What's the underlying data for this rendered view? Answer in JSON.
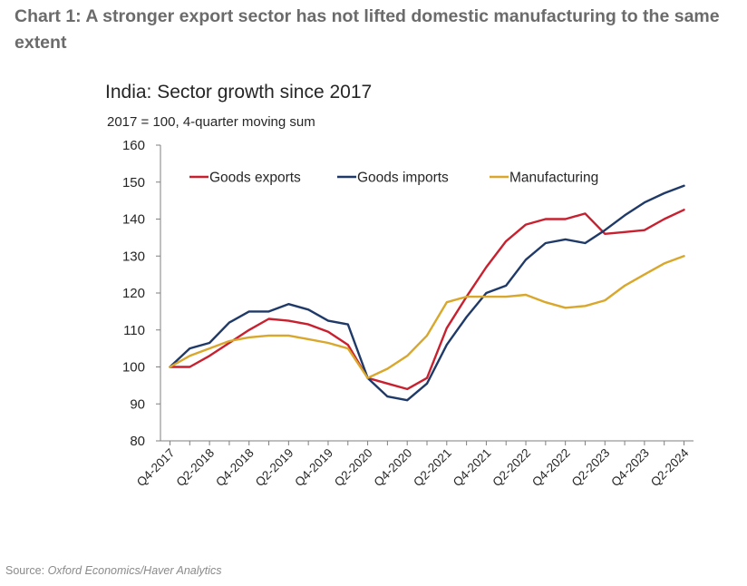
{
  "page": {
    "title": "Chart 1: A stronger export sector has not lifted domestic manufacturing to the same extent",
    "source_label": "Source:",
    "source_name": "Oxford Economics/Haver Analytics"
  },
  "colors": {
    "goods_exports": "#c8202f",
    "goods_imports": "#1f3a68",
    "manufacturing": "#d8a72b",
    "axis": "#7f7f7f",
    "text": "#262626"
  },
  "chart_data": {
    "type": "line",
    "title": "India: Sector growth since 2017",
    "subtitle": "2017 = 100, 4-quarter moving sum",
    "xlabel": "",
    "ylabel": "",
    "ylim": [
      80,
      160
    ],
    "yticks": [
      80,
      90,
      100,
      110,
      120,
      130,
      140,
      150,
      160
    ],
    "grid": false,
    "legend_position": "top",
    "x_tick_labels": [
      "Q4-2017",
      "Q2-2018",
      "Q4-2018",
      "Q2-2019",
      "Q4-2019",
      "Q2-2020",
      "Q4-2020",
      "Q2-2021",
      "Q4-2021",
      "Q2-2022",
      "Q4-2022",
      "Q2-2023",
      "Q4-2023",
      "Q2-2024"
    ],
    "x": [
      "Q4-2017",
      "Q1-2018",
      "Q2-2018",
      "Q3-2018",
      "Q4-2018",
      "Q1-2019",
      "Q2-2019",
      "Q3-2019",
      "Q4-2019",
      "Q1-2020",
      "Q2-2020",
      "Q3-2020",
      "Q4-2020",
      "Q1-2021",
      "Q2-2021",
      "Q3-2021",
      "Q4-2021",
      "Q1-2022",
      "Q2-2022",
      "Q3-2022",
      "Q4-2022",
      "Q1-2023",
      "Q2-2023",
      "Q3-2023",
      "Q4-2023",
      "Q1-2024",
      "Q2-2024"
    ],
    "series": [
      {
        "name": "Goods exports",
        "color_key": "goods_exports",
        "values": [
          100,
          100,
          103,
          106.5,
          110,
          113,
          112.5,
          111.5,
          109.5,
          106,
          97,
          95.5,
          94,
          97,
          110.5,
          119,
          127,
          134,
          138.5,
          140,
          140,
          141.5,
          136,
          136.5,
          137,
          140,
          142.5
        ]
      },
      {
        "name": "Goods imports",
        "color_key": "goods_imports",
        "values": [
          100,
          105,
          106.5,
          112,
          115,
          115,
          117,
          115.5,
          112.5,
          111.5,
          97,
          92,
          91,
          95.5,
          106,
          113.5,
          120,
          122,
          129,
          133.5,
          134.5,
          133.5,
          137,
          141,
          144.5,
          147,
          149
        ]
      },
      {
        "name": "Manufacturing",
        "color_key": "manufacturing",
        "values": [
          100,
          103,
          105,
          107,
          108,
          108.5,
          108.5,
          107.5,
          106.5,
          105,
          97,
          99.5,
          103,
          108.5,
          117.5,
          119,
          119,
          119,
          119.5,
          117.5,
          116,
          116.5,
          118,
          122,
          125,
          128,
          130
        ]
      }
    ]
  }
}
